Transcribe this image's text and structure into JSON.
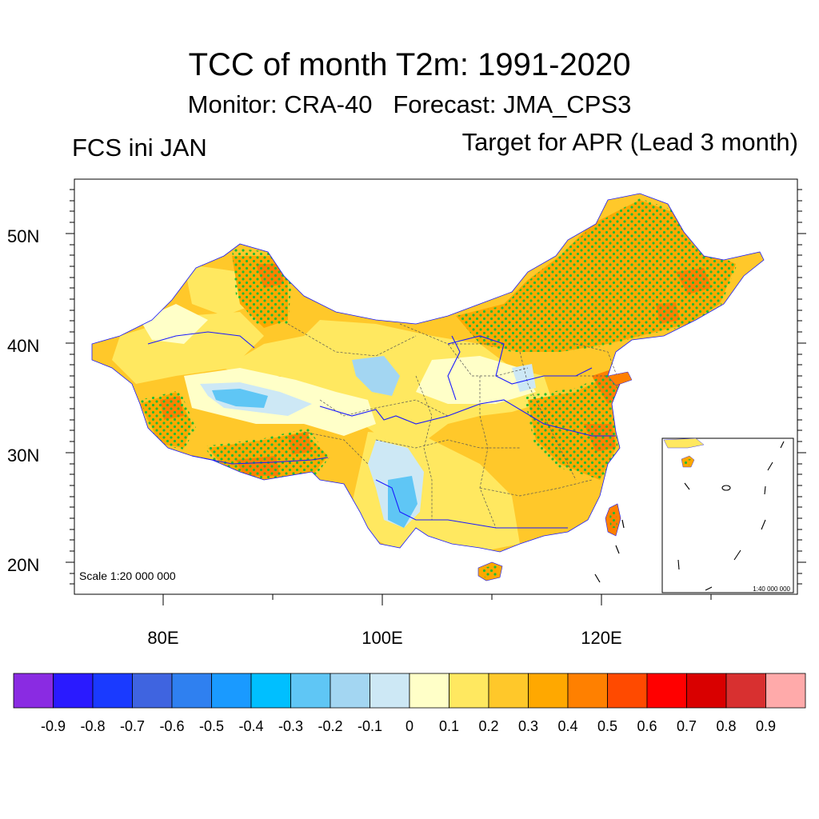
{
  "title": "TCC of month T2m: 1991-2020",
  "subtitle": {
    "monitor": "Monitor: CRA-40",
    "forecast": "Forecast: JMA_CPS3"
  },
  "left_label": "FCS ini JAN",
  "right_label": "Target for APR (Lead 3 month)",
  "map": {
    "scale_main": "Scale 1:20 000 000",
    "scale_inset": "1:40 000 000",
    "lat_labels": [
      "20N",
      "30N",
      "40N",
      "50N"
    ],
    "lon_labels": [
      "80E",
      "100E",
      "120E"
    ],
    "significance_marker": "green dots"
  },
  "colorbar": {
    "colors": [
      "#8a2be2",
      "#2a1aff",
      "#1a3aff",
      "#3f64e0",
      "#2f80f0",
      "#1a9aff",
      "#00bfff",
      "#5fc6f5",
      "#a3d6f2",
      "#cde8f5",
      "#ffffc8",
      "#ffe860",
      "#ffc82a",
      "#ffa800",
      "#ff8000",
      "#ff4a00",
      "#ff0000",
      "#d90000",
      "#d83030",
      "#ffaaaa"
    ],
    "labels": [
      "-0.9",
      "-0.8",
      "-0.7",
      "-0.6",
      "-0.5",
      "-0.4",
      "-0.3",
      "-0.2",
      "-0.1",
      "0",
      "0.1",
      "0.2",
      "0.3",
      "0.4",
      "0.5",
      "0.6",
      "0.7",
      "0.8",
      "0.9"
    ]
  },
  "palette": {
    "dot_color": "#22bb33",
    "border_color": "#555555",
    "river_color": "#1a1aff"
  }
}
